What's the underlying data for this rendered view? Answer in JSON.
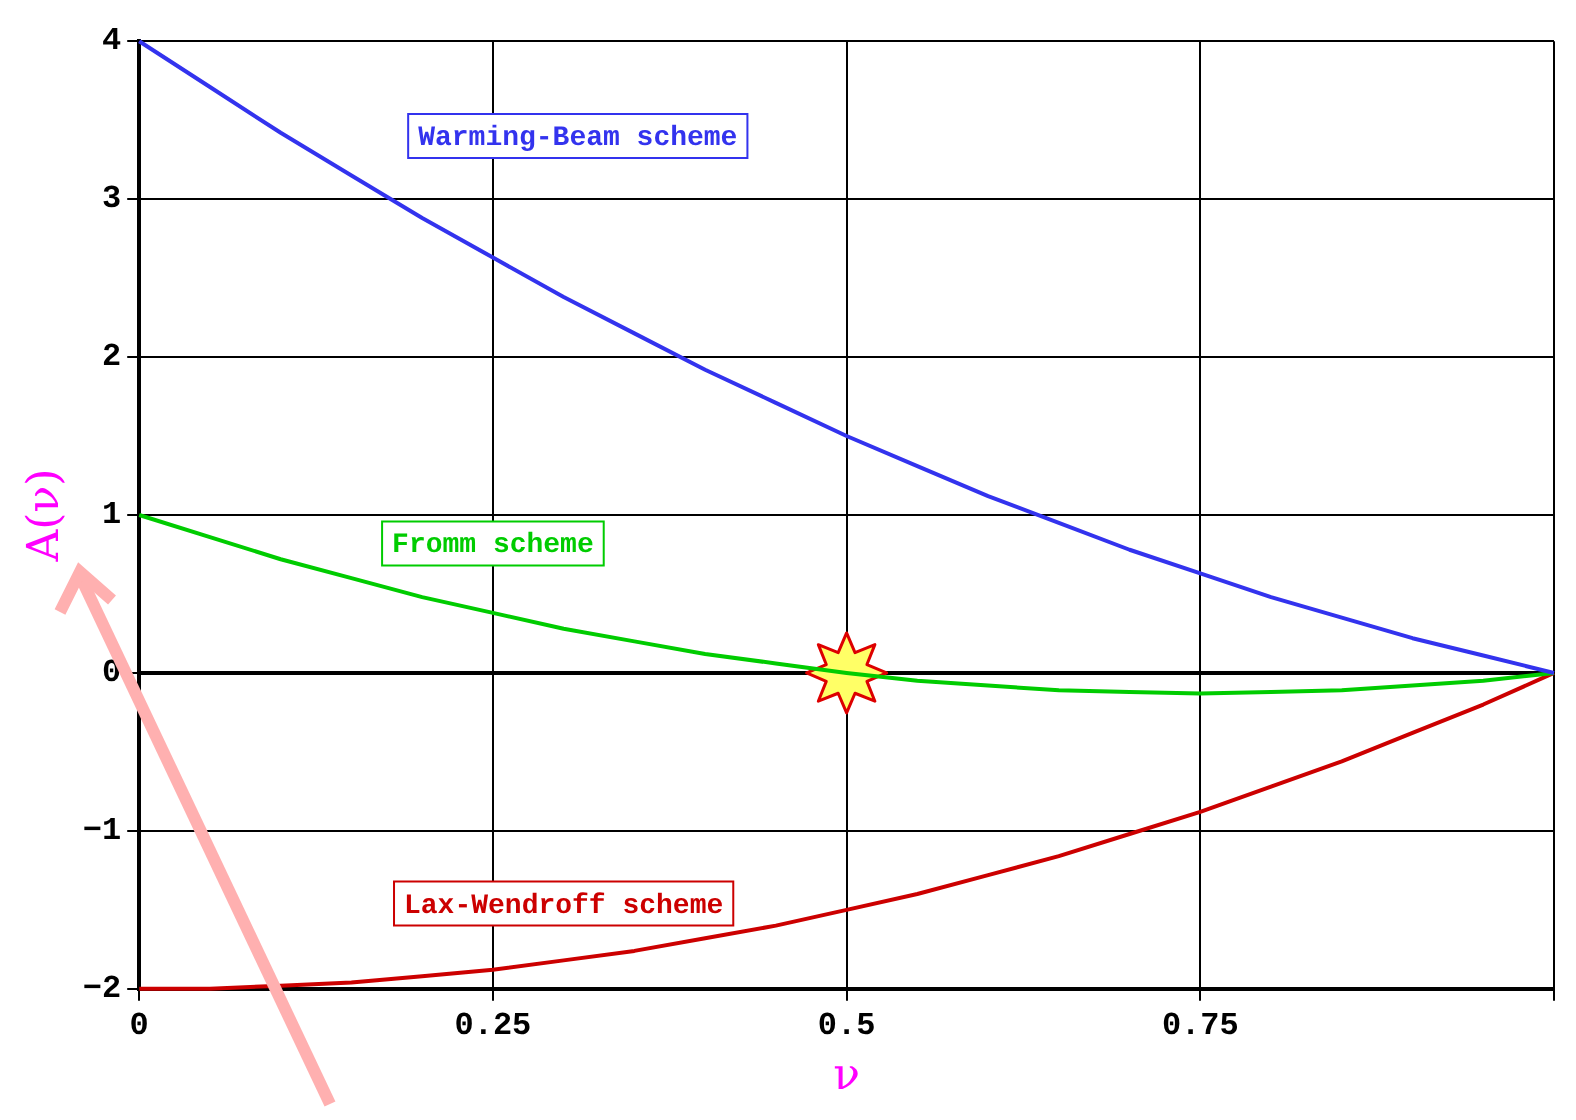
{
  "chart_data": {
    "type": "line",
    "xlabel": "ν",
    "ylabel": "A(ν)",
    "xlim": [
      0,
      1
    ],
    "xticks": [
      0,
      0.25,
      0.5,
      0.75,
      {
        "value": 1,
        "label": null
      }
    ],
    "ylim": [
      -2,
      4
    ],
    "yticks": [
      -2,
      -1,
      0,
      1,
      2,
      3,
      4
    ],
    "grid": true,
    "legend": false,
    "marker": "none",
    "line_style": "solid",
    "x": [
      0,
      0.05,
      0.1,
      0.15,
      0.2,
      0.25,
      0.3,
      0.35,
      0.4,
      0.45,
      0.5,
      0.55,
      0.6,
      0.65,
      0.7,
      0.75,
      0.8,
      0.85,
      0.9,
      0.95,
      1
    ],
    "ref_lines": [
      {
        "axis": "y",
        "value": 0,
        "color": "#000000"
      }
    ],
    "series": [
      {
        "name": "Warming-Beam scheme",
        "color": "#3333ee",
        "values": [
          4,
          3.71,
          3.42,
          3.15,
          2.88,
          2.63,
          2.38,
          2.15,
          1.92,
          1.71,
          1.5,
          1.31,
          1.12,
          0.95,
          0.78,
          0.63,
          0.48,
          0.35,
          0.22,
          0.11,
          0
        ]
      },
      {
        "name": "Fromm scheme",
        "color": "#00cc00",
        "values": [
          1,
          0.86,
          0.72,
          0.6,
          0.48,
          0.38,
          0.28,
          0.2,
          0.12,
          0.06,
          0,
          -0.05,
          -0.08,
          -0.11,
          -0.12,
          -0.13,
          -0.12,
          -0.11,
          -0.08,
          -0.05,
          0
        ]
      },
      {
        "name": "Lax-Wendroff scheme",
        "color": "#cc0000",
        "values": [
          -2,
          -2.0,
          -1.98,
          -1.96,
          -1.92,
          -1.88,
          -1.82,
          -1.76,
          -1.68,
          -1.6,
          -1.5,
          -1.4,
          -1.28,
          -1.16,
          -1.02,
          -0.88,
          -0.72,
          -0.56,
          -0.38,
          -0.2,
          0
        ]
      },
      {
        "type": "scatter",
        "marker": "star",
        "color": "#ffff66",
        "x": [
          0.5
        ],
        "values": [
          0
        ]
      }
    ]
  }
}
